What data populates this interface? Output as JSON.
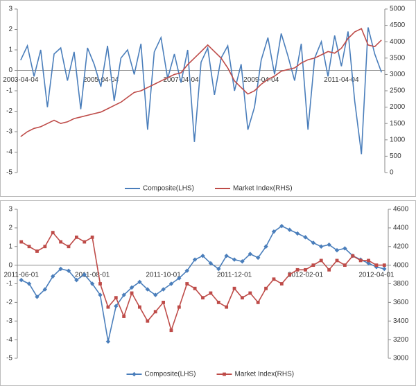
{
  "chart_data": [
    {
      "type": "line",
      "categories": [
        "2003-04-04",
        null,
        null,
        null,
        null,
        null,
        null,
        null,
        null,
        null,
        null,
        null,
        "2005-04-04",
        null,
        null,
        null,
        null,
        null,
        null,
        null,
        null,
        null,
        null,
        null,
        "2007-04-04",
        null,
        null,
        null,
        null,
        null,
        null,
        null,
        null,
        null,
        null,
        null,
        "2009-04-04",
        null,
        null,
        null,
        null,
        null,
        null,
        null,
        null,
        null,
        null,
        null,
        "2011-04-04",
        null,
        null,
        null,
        null,
        null,
        null
      ],
      "series": [
        {
          "name": "Composite(LHS)",
          "color": "#4a7ebb",
          "axis": "y",
          "values": [
            0.5,
            1.2,
            -0.3,
            1.0,
            -1.8,
            0.8,
            1.1,
            -0.5,
            0.9,
            -1.9,
            1.1,
            0.3,
            -0.8,
            1.2,
            -1.5,
            0.6,
            1.0,
            -0.2,
            1.3,
            -2.9,
            0.9,
            1.6,
            -0.4,
            0.8,
            -0.6,
            1.0,
            -3.5,
            0.4,
            1.1,
            -1.2,
            0.6,
            1.2,
            -1.0,
            0.3,
            -2.9,
            -1.8,
            0.5,
            1.6,
            -0.2,
            1.8,
            0.7,
            -0.5,
            1.3,
            -2.9,
            0.6,
            1.4,
            -0.3,
            1.7,
            0.2,
            1.9,
            -1.5,
            -4.1,
            2.1,
            0.8,
            -0.1
          ]
        },
        {
          "name": "Market Index(RHS)",
          "color": "#be4b48",
          "axis": "y2",
          "values": [
            1100,
            1250,
            1350,
            1400,
            1500,
            1600,
            1500,
            1550,
            1650,
            1700,
            1750,
            1800,
            1850,
            1950,
            2050,
            2150,
            2300,
            2450,
            2500,
            2600,
            2700,
            2800,
            2900,
            3000,
            3050,
            3300,
            3500,
            3700,
            3900,
            3700,
            3500,
            3200,
            2800,
            2600,
            2400,
            2500,
            2700,
            2850,
            2950,
            3100,
            3150,
            3200,
            3350,
            3450,
            3500,
            3600,
            3700,
            3650,
            3800,
            4100,
            4300,
            4400,
            3900,
            3850,
            4050
          ]
        }
      ],
      "ylim": [
        -5,
        3
      ],
      "yticks": [
        -5,
        -4,
        -3,
        -2,
        -1,
        0,
        1,
        2,
        3
      ],
      "y2lim": [
        0,
        5000
      ],
      "y2ticks": [
        0,
        500,
        1000,
        1500,
        2000,
        2500,
        3000,
        3500,
        4000,
        4500,
        5000
      ],
      "legend": "bottom",
      "markers": false
    },
    {
      "type": "line",
      "categories": [
        "2011-06-01",
        null,
        null,
        null,
        null,
        null,
        null,
        null,
        null,
        "2011-08-01",
        null,
        null,
        null,
        null,
        null,
        null,
        null,
        null,
        "2011-10-01",
        null,
        null,
        null,
        null,
        null,
        null,
        null,
        null,
        "2011-12-01",
        null,
        null,
        null,
        null,
        null,
        null,
        null,
        null,
        "2012-02-01",
        null,
        null,
        null,
        null,
        null,
        null,
        null,
        null,
        "2012-04-01",
        null
      ],
      "series": [
        {
          "name": "Composite(LHS)",
          "color": "#4a7ebb",
          "axis": "y",
          "marker": "diamond",
          "values": [
            -0.8,
            -1.0,
            -1.7,
            -1.3,
            -0.6,
            -0.2,
            -0.3,
            -0.8,
            -0.5,
            -1.0,
            -1.6,
            -4.1,
            -2.2,
            -1.6,
            -1.2,
            -0.9,
            -1.3,
            -1.6,
            -1.3,
            -1.0,
            -0.7,
            -0.3,
            0.3,
            0.5,
            0.1,
            -0.2,
            0.5,
            0.3,
            0.2,
            0.6,
            0.4,
            1.0,
            1.8,
            2.1,
            1.9,
            1.7,
            1.5,
            1.2,
            1.0,
            1.1,
            0.8,
            0.9,
            0.5,
            0.3,
            0.1,
            -0.1,
            -0.2
          ]
        },
        {
          "name": "Market Index(RHS)",
          "color": "#be4b48",
          "axis": "y2",
          "marker": "square",
          "values": [
            4250,
            4200,
            4150,
            4200,
            4350,
            4250,
            4200,
            4300,
            4250,
            4300,
            3800,
            3550,
            3650,
            3450,
            3700,
            3550,
            3400,
            3500,
            3600,
            3300,
            3550,
            3800,
            3750,
            3650,
            3700,
            3600,
            3550,
            3750,
            3650,
            3700,
            3600,
            3750,
            3850,
            3800,
            3900,
            3950,
            3950,
            4000,
            4050,
            3950,
            4050,
            4000,
            4100,
            4050,
            4050,
            4000,
            4000
          ]
        }
      ],
      "ylim": [
        -5,
        3
      ],
      "yticks": [
        -5,
        -4,
        -3,
        -2,
        -1,
        0,
        1,
        2,
        3
      ],
      "y2lim": [
        3000,
        4600
      ],
      "y2ticks": [
        3000,
        3200,
        3400,
        3600,
        3800,
        4000,
        4200,
        4400,
        4600
      ],
      "legend": "bottom",
      "markers": true
    }
  ]
}
